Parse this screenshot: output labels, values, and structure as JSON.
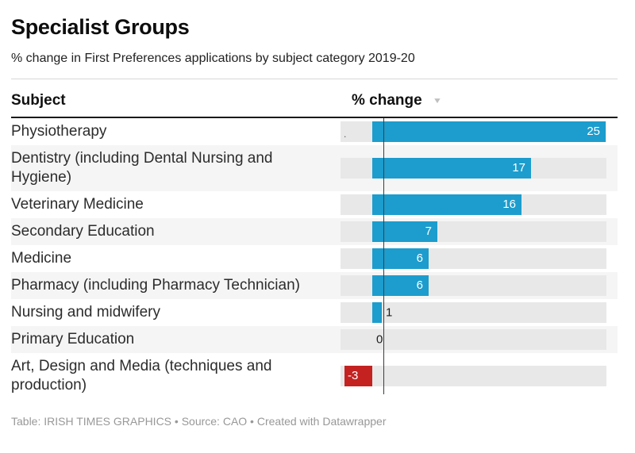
{
  "header": {
    "title": "Specialist Groups",
    "subtitle": "% change in First Preferences applications by subject category 2019-20"
  },
  "table": {
    "columns": {
      "subject": "Subject",
      "change": "% change"
    },
    "sort_icon": "▼",
    "rows": [
      {
        "label": "Physiotherapy",
        "value": 25,
        "note": "."
      },
      {
        "label": "Dentistry (including Dental Nursing and Hygiene)",
        "value": 17
      },
      {
        "label": "Veterinary Medicine",
        "value": 16
      },
      {
        "label": "Secondary Education",
        "value": 7
      },
      {
        "label": "Medicine",
        "value": 6
      },
      {
        "label": "Pharmacy (including Pharmacy Technician)",
        "value": 6
      },
      {
        "label": "Nursing and midwifery",
        "value": 1
      },
      {
        "label": "Primary Education",
        "value": 0
      },
      {
        "label": "Art, Design and Media (techniques and production)",
        "value": -3
      }
    ]
  },
  "chart_data": {
    "type": "bar",
    "orientation": "horizontal",
    "title": "Specialist Groups",
    "subtitle": "% change in First Preferences applications by subject category 2019-20",
    "categories": [
      "Physiotherapy",
      "Dentistry (including Dental Nursing and Hygiene)",
      "Veterinary Medicine",
      "Secondary Education",
      "Medicine",
      "Pharmacy (including Pharmacy Technician)",
      "Nursing and midwifery",
      "Primary Education",
      "Art, Design and Media (techniques and production)"
    ],
    "values": [
      25,
      17,
      16,
      7,
      6,
      6,
      1,
      0,
      -3
    ],
    "xlabel": "% change",
    "ylabel": "Subject",
    "xlim": [
      -3,
      25
    ],
    "sort": "descending",
    "grid": false,
    "legend": false,
    "value_labels": true
  },
  "footer": {
    "text": "Table: IRISH TIMES GRAPHICS • Source: CAO • Created with Datawrapper"
  },
  "colors": {
    "bar_positive": "#1c9dcd",
    "bar_negative": "#c42221",
    "bar_track": "#e8e8e8",
    "row_stripe": "#f5f5f5",
    "axis_line": "#3d3d3d",
    "value_label_inside": "#ffffff",
    "value_label_outside": "#1d1d1d"
  }
}
